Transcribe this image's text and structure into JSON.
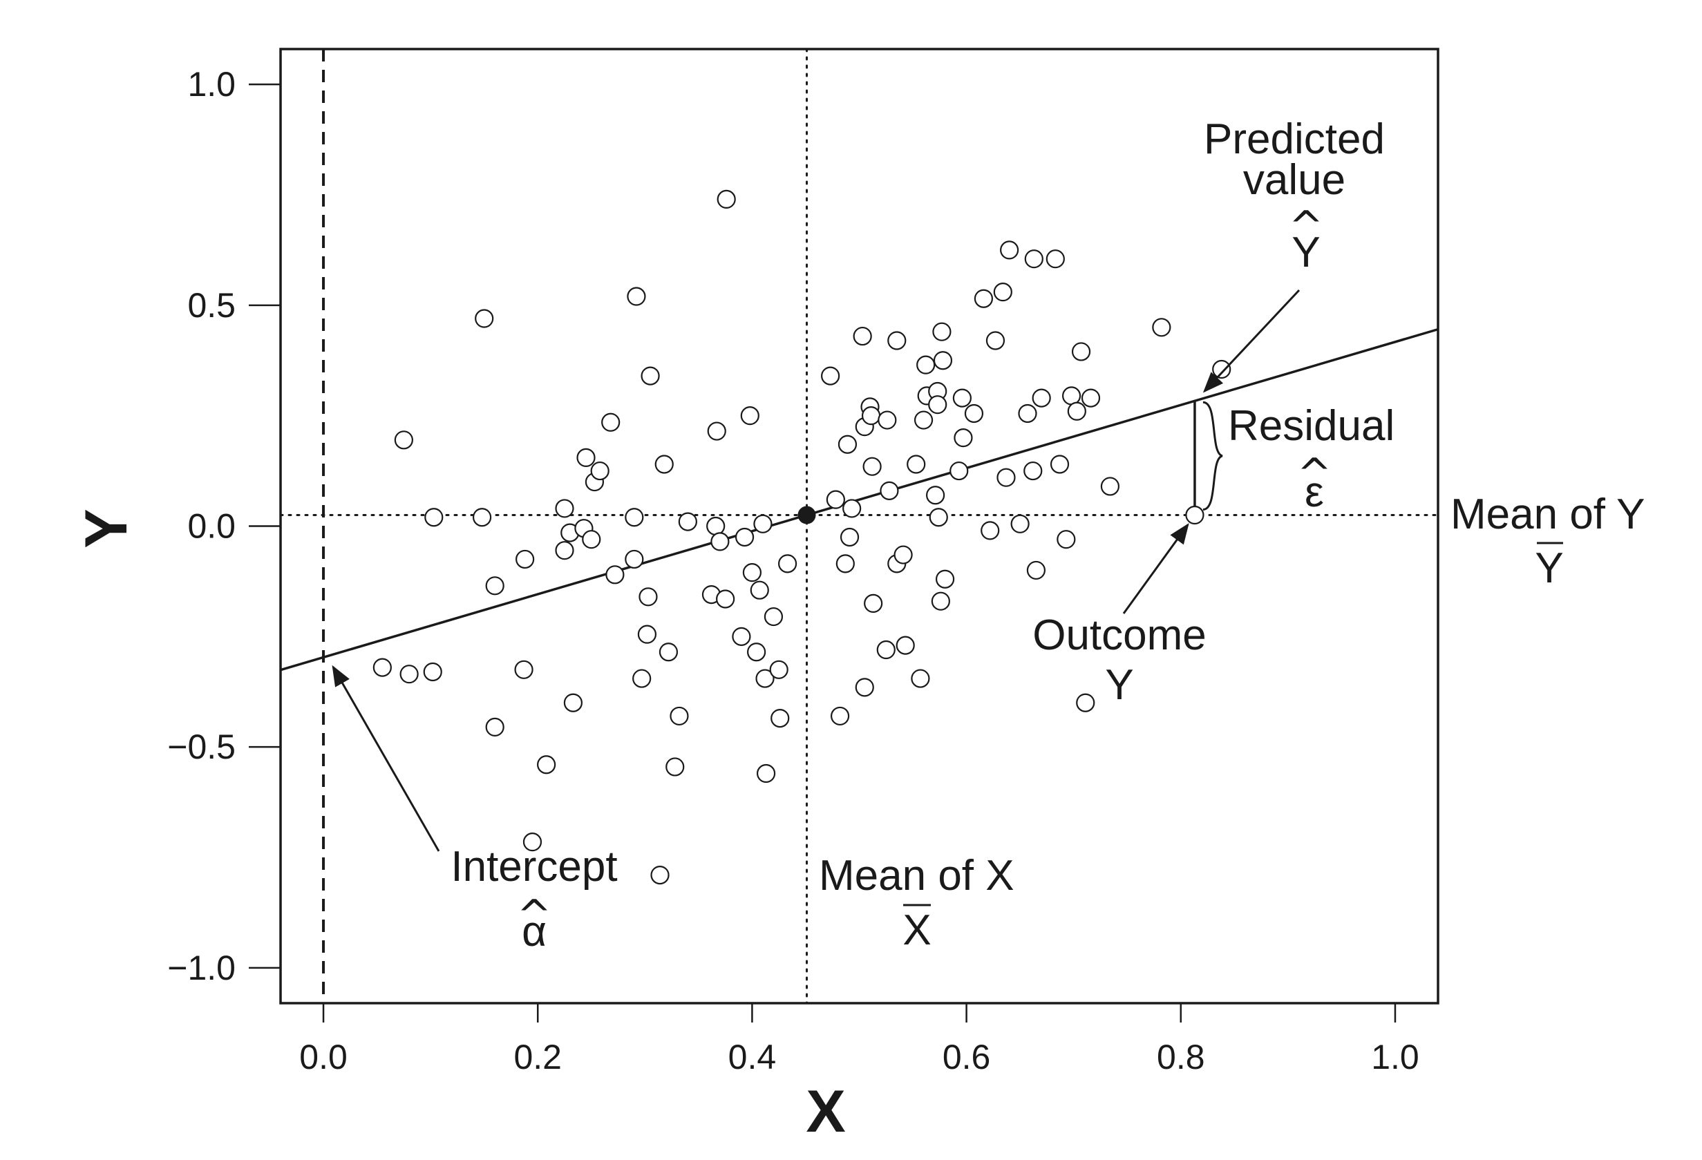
{
  "chart_data": {
    "type": "scatter",
    "xlabel": "X",
    "ylabel": "Y",
    "xlim": [
      -0.04,
      1.04
    ],
    "ylim": [
      -1.08,
      1.08
    ],
    "x_ticks": [
      "0.0",
      "0.2",
      "0.4",
      "0.6",
      "0.8",
      "1.0"
    ],
    "y_ticks": [
      "1.0",
      "0.5",
      "0.0",
      "−0.5",
      "−1.0"
    ],
    "x_tick_values": [
      0,
      0.2,
      0.4,
      0.6,
      0.8,
      1.0
    ],
    "y_tick_values": [
      1.0,
      0.5,
      0,
      -0.5,
      -1.0
    ],
    "grid": false,
    "points": [
      [
        0.055,
        -0.32
      ],
      [
        0.08,
        -0.335
      ],
      [
        0.102,
        -0.33
      ],
      [
        0.075,
        0.195
      ],
      [
        0.103,
        0.02
      ],
      [
        0.148,
        0.02
      ],
      [
        0.15,
        0.47
      ],
      [
        0.16,
        -0.135
      ],
      [
        0.16,
        -0.455
      ],
      [
        0.188,
        -0.075
      ],
      [
        0.187,
        -0.325
      ],
      [
        0.195,
        -0.715
      ],
      [
        0.208,
        -0.54
      ],
      [
        0.225,
        0.04
      ],
      [
        0.225,
        -0.055
      ],
      [
        0.23,
        -0.015
      ],
      [
        0.233,
        -0.4
      ],
      [
        0.243,
        -0.005
      ],
      [
        0.245,
        0.155
      ],
      [
        0.25,
        -0.03
      ],
      [
        0.253,
        0.1
      ],
      [
        0.258,
        0.125
      ],
      [
        0.268,
        0.235
      ],
      [
        0.272,
        -0.11
      ],
      [
        0.29,
        -0.075
      ],
      [
        0.29,
        0.02
      ],
      [
        0.292,
        0.52
      ],
      [
        0.297,
        -0.345
      ],
      [
        0.302,
        -0.245
      ],
      [
        0.303,
        -0.16
      ],
      [
        0.305,
        0.34
      ],
      [
        0.314,
        -0.79
      ],
      [
        0.318,
        0.14
      ],
      [
        0.322,
        -0.285
      ],
      [
        0.328,
        -0.545
      ],
      [
        0.332,
        -0.43
      ],
      [
        0.34,
        0.01
      ],
      [
        0.362,
        -0.155
      ],
      [
        0.366,
        0.0
      ],
      [
        0.367,
        0.215
      ],
      [
        0.37,
        -0.035
      ],
      [
        0.375,
        -0.165
      ],
      [
        0.376,
        0.74
      ],
      [
        0.39,
        -0.25
      ],
      [
        0.393,
        -0.025
      ],
      [
        0.398,
        0.25
      ],
      [
        0.4,
        -0.105
      ],
      [
        0.404,
        -0.285
      ],
      [
        0.407,
        -0.145
      ],
      [
        0.41,
        0.005
      ],
      [
        0.412,
        -0.345
      ],
      [
        0.413,
        -0.56
      ],
      [
        0.42,
        -0.205
      ],
      [
        0.425,
        -0.325
      ],
      [
        0.426,
        -0.435
      ],
      [
        0.433,
        -0.085
      ],
      [
        0.473,
        0.34
      ],
      [
        0.478,
        0.06
      ],
      [
        0.482,
        -0.43
      ],
      [
        0.487,
        -0.085
      ],
      [
        0.489,
        0.185
      ],
      [
        0.491,
        -0.025
      ],
      [
        0.493,
        0.04
      ],
      [
        0.503,
        0.43
      ],
      [
        0.505,
        0.225
      ],
      [
        0.505,
        -0.365
      ],
      [
        0.51,
        0.27
      ],
      [
        0.511,
        0.25
      ],
      [
        0.512,
        0.135
      ],
      [
        0.513,
        -0.175
      ],
      [
        0.525,
        -0.28
      ],
      [
        0.526,
        0.24
      ],
      [
        0.528,
        0.08
      ],
      [
        0.535,
        -0.085
      ],
      [
        0.535,
        0.42
      ],
      [
        0.541,
        -0.065
      ],
      [
        0.543,
        -0.27
      ],
      [
        0.553,
        0.14
      ],
      [
        0.557,
        -0.345
      ],
      [
        0.56,
        0.24
      ],
      [
        0.562,
        0.365
      ],
      [
        0.563,
        0.295
      ],
      [
        0.571,
        0.07
      ],
      [
        0.573,
        0.305
      ],
      [
        0.573,
        0.275
      ],
      [
        0.574,
        0.02
      ],
      [
        0.576,
        -0.17
      ],
      [
        0.577,
        0.44
      ],
      [
        0.578,
        0.375
      ],
      [
        0.58,
        -0.12
      ],
      [
        0.593,
        0.125
      ],
      [
        0.596,
        0.29
      ],
      [
        0.597,
        0.2
      ],
      [
        0.607,
        0.255
      ],
      [
        0.616,
        0.515
      ],
      [
        0.622,
        -0.01
      ],
      [
        0.627,
        0.42
      ],
      [
        0.634,
        0.53
      ],
      [
        0.637,
        0.11
      ],
      [
        0.64,
        0.625
      ],
      [
        0.65,
        0.005
      ],
      [
        0.657,
        0.255
      ],
      [
        0.662,
        0.125
      ],
      [
        0.663,
        0.605
      ],
      [
        0.665,
        -0.1
      ],
      [
        0.67,
        0.29
      ],
      [
        0.683,
        0.605
      ],
      [
        0.687,
        0.14
      ],
      [
        0.693,
        -0.03
      ],
      [
        0.698,
        0.295
      ],
      [
        0.703,
        0.26
      ],
      [
        0.707,
        0.395
      ],
      [
        0.711,
        -0.4
      ],
      [
        0.716,
        0.29
      ],
      [
        0.734,
        0.09
      ],
      [
        0.782,
        0.45
      ],
      [
        0.813,
        0.025
      ],
      [
        0.838,
        0.355
      ]
    ],
    "mean_x": 0.451,
    "mean_y": 0.025,
    "fit_line": {
      "intercept": -0.297,
      "slope": 0.714
    },
    "annotations": {
      "predicted": {
        "line1": "Predicted",
        "line2": "value",
        "hat": "^",
        "symbol": "Y"
      },
      "residual": {
        "label": "Residual",
        "hat": "^",
        "symbol": "ε"
      },
      "mean_y": {
        "label": "Mean of Y",
        "symbol": "Y"
      },
      "outcome": {
        "label": "Outcome",
        "symbol": "Y"
      },
      "intercept": {
        "label": "Intercept",
        "hat": "^",
        "symbol": "α"
      },
      "mean_x": {
        "label": "Mean of X",
        "symbol": "X"
      }
    },
    "highlight_point": [
      0.813,
      0.025
    ]
  }
}
